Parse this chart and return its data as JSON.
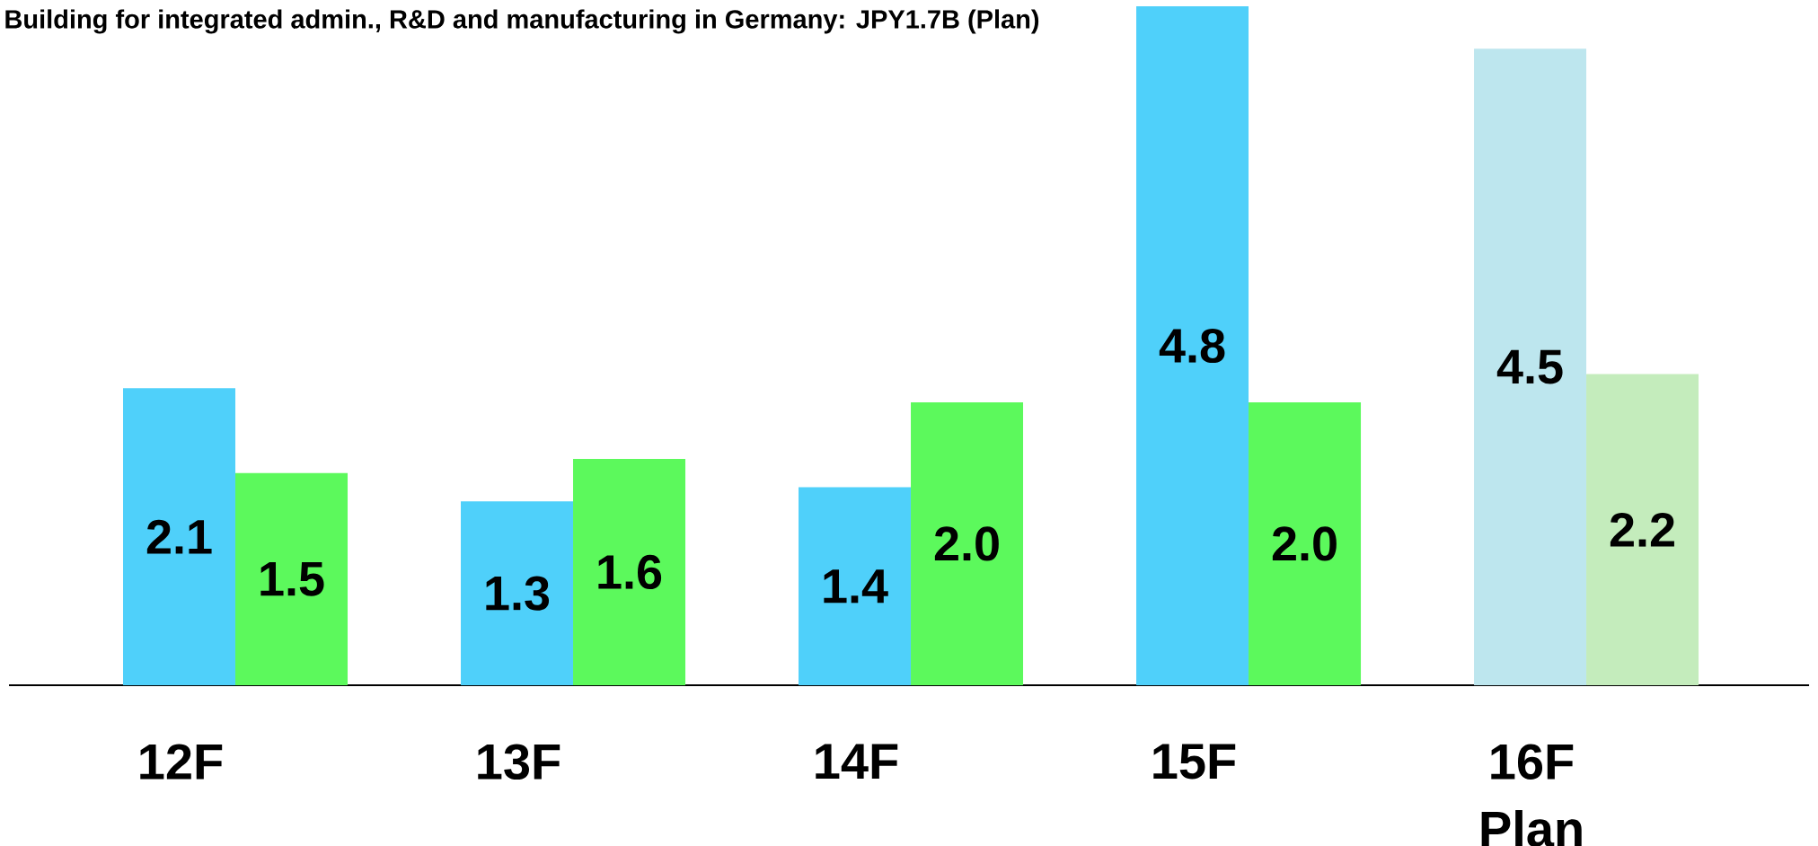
{
  "chart_data": {
    "type": "bar",
    "annotations": [
      "Building for integrated admin., R&D and manufacturing in Germany: JPY1.7B (Plan)"
    ],
    "categories": [
      "12F",
      "13F",
      "14F",
      "15F",
      "16F Plan"
    ],
    "series": [
      {
        "colors": [
          "#4fd0fa",
          "#4fd0fa",
          "#4fd0fa",
          "#4fd0fa",
          "#bde6ee"
        ],
        "values": [
          2.1,
          1.3,
          1.4,
          4.8,
          4.5
        ],
        "value_labels": [
          "2.1",
          "1.3",
          "1.4",
          "4.8",
          "4.5"
        ]
      },
      {
        "colors": [
          "#5cf95c",
          "#5cf95c",
          "#5cf95c",
          "#5cf95c",
          "#c4ecbc"
        ],
        "values": [
          1.5,
          1.6,
          2.0,
          2.0,
          2.2
        ],
        "value_labels": [
          "1.5",
          "1.6",
          "2.0",
          "2.0",
          "2.2"
        ]
      }
    ]
  }
}
